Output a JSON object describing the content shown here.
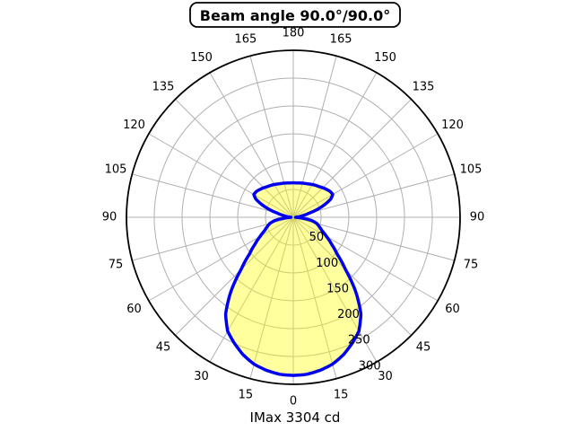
{
  "title": "Beam angle 90.0°/90.0°",
  "footer": "IMax 3304 cd",
  "colors": {
    "background": "#ffffff",
    "text": "#000000",
    "grid": "#b0b0b0",
    "outer_circle": "#000000",
    "beam_fill": "#ffff00",
    "beam_fill_opacity": 0.38,
    "beam_stroke": "#0000ee"
  },
  "chart_data": {
    "type": "polar-line",
    "title": "Beam angle 90.0°/90.0°",
    "subtitle": "IMax 3304 cd",
    "imax_cd": 3304,
    "beam_angle_label": "90.0°/90.0°",
    "zero_direction": "down",
    "symmetric_mirror": true,
    "grid": true,
    "angle_step_deg": 15,
    "angle_labels_deg": [
      0,
      15,
      30,
      45,
      60,
      75,
      90,
      105,
      120,
      135,
      150,
      165,
      180
    ],
    "radial_ticks": [
      50,
      100,
      150,
      200,
      250,
      300
    ],
    "rmax": 300,
    "radial_label_angle_deg": 22.5,
    "samples": {
      "angle_deg": [
        0,
        5,
        10,
        15,
        20,
        25,
        30,
        35,
        40,
        45,
        50,
        55,
        60,
        65,
        70,
        75,
        80,
        84,
        87,
        90,
        93,
        96,
        100,
        104,
        108,
        112,
        116,
        120,
        125,
        130,
        135,
        140,
        145,
        150,
        155,
        160,
        165,
        170,
        175,
        180
      ],
      "intensity": [
        284,
        283,
        279,
        273,
        263,
        250,
        236,
        212,
        175,
        133,
        103,
        84,
        69,
        57,
        50,
        44,
        34,
        18,
        8,
        4,
        7,
        11,
        17,
        28,
        45,
        61,
        75,
        82,
        81,
        78,
        75,
        72,
        70,
        68,
        66,
        64.5,
        63.5,
        62.5,
        62,
        62
      ]
    }
  }
}
